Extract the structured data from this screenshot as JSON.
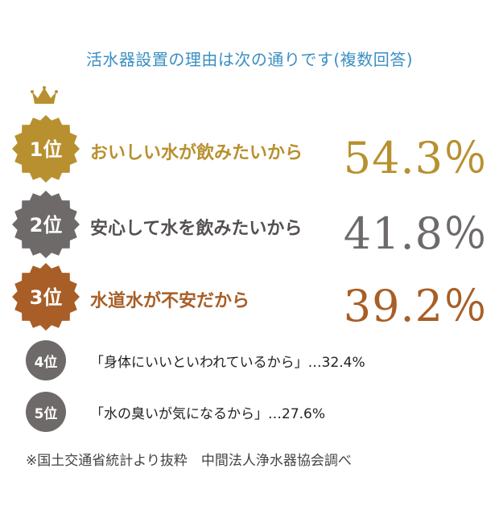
{
  "title": "活水器設置の理由は次の通りです(複数回答)",
  "chart_data": {
    "type": "table",
    "title": "活水器設置の理由は次の通りです(複数回答)",
    "rows": [
      {
        "rank": "1位",
        "label": "おいしい水が飲みたいから",
        "value": 54.3,
        "value_text": "54.3％"
      },
      {
        "rank": "2位",
        "label": "安心して水を飲みたいから",
        "value": 41.8,
        "value_text": "41.8％"
      },
      {
        "rank": "3位",
        "label": "水道水が不安だから",
        "value": 39.2,
        "value_text": "39.2％"
      },
      {
        "rank": "4位",
        "label": "「身体にいいといわれているから」…32.4%",
        "value": 32.4
      },
      {
        "rank": "5位",
        "label": "「水の臭いが気になるから」…27.6%",
        "value": 27.6
      }
    ]
  },
  "colors": {
    "gold": "#b8902f",
    "gray": "#6e6a6a",
    "brown": "#a85e26",
    "title_blue": "#3a8fc2"
  },
  "icons": {
    "crown": "crown-icon"
  },
  "footnote": "※国土交通省統計より抜粋　中間法人浄水器協会調べ"
}
